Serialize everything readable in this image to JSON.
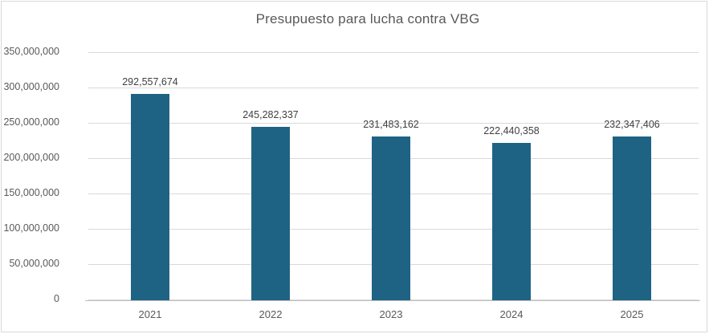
{
  "chart_data": {
    "type": "bar",
    "title": "Presupuesto para lucha contra VBG",
    "categories": [
      "2021",
      "2022",
      "2023",
      "2024",
      "2025"
    ],
    "values": [
      292557674,
      245282337,
      231483162,
      222440358,
      232347406
    ],
    "value_labels": [
      "292,557,674",
      "245,282,337",
      "231,483,162",
      "222,440,358",
      "232,347,406"
    ],
    "xlabel": "",
    "ylabel": "",
    "ylim": [
      0,
      350000000
    ],
    "ytick_step": 50000000,
    "ytick_labels": [
      "0",
      "50,000,000",
      "100,000,000",
      "150,000,000",
      "200,000,000",
      "250,000,000",
      "300,000,000",
      "350,000,000"
    ],
    "grid": "horizontal",
    "legend_position": "none",
    "colors": {
      "bar_fill": "#1f6384",
      "gridline": "#d9d9d9",
      "axis_line": "#bfbfbf",
      "title_text": "#595959",
      "axis_text": "#595959",
      "data_label_text": "#404040",
      "chart_border": "#d9d9d9",
      "background": "#ffffff"
    }
  }
}
